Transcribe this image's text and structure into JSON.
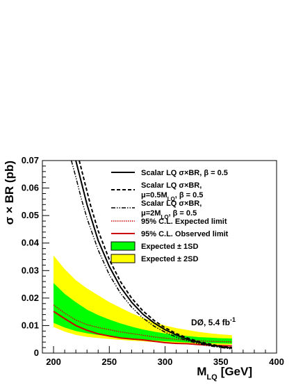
{
  "chart_data": {
    "type": "line",
    "xlabel_main": "M",
    "xlabel_sub": "LQ",
    "xlabel_unit": "[GeV]",
    "ylabel": "σ × BR (pb)",
    "xlim": [
      190,
      400
    ],
    "ylim": [
      0,
      0.07
    ],
    "x_ticks": [
      200,
      250,
      300,
      350,
      400
    ],
    "y_ticks": [
      0,
      0.01,
      0.02,
      0.03,
      0.04,
      0.05,
      0.06,
      0.07
    ],
    "y_tick_labels": [
      "0",
      "0.01",
      "0.02",
      "0.03",
      "0.04",
      "0.05",
      "0.06",
      "0.07"
    ],
    "annotation": {
      "main": "DØ, 5.4 fb",
      "sup": "-1"
    },
    "colors": {
      "band_2sd": "#ffff00",
      "band_1sd": "#00ff00",
      "observed": "#cc0000",
      "expected": "#cc0000",
      "theory": "#000000"
    },
    "x": [
      200,
      210,
      220,
      230,
      240,
      250,
      260,
      270,
      280,
      290,
      300,
      310,
      320,
      330,
      340,
      350,
      360
    ],
    "series": [
      {
        "key": "nominal",
        "name": "Scalar LQ σ×BR, β = 0.5",
        "style": "solid",
        "x": [
          220,
          225,
          230,
          240,
          250,
          260,
          270,
          280,
          290,
          300,
          310,
          320,
          330,
          340,
          350,
          360
        ],
        "values": [
          0.07,
          0.062,
          0.054,
          0.041,
          0.0315,
          0.024,
          0.0185,
          0.0142,
          0.011,
          0.0085,
          0.0066,
          0.005,
          0.0039,
          0.003,
          0.0023,
          0.0018
        ]
      },
      {
        "key": "half_mu",
        "name": "Scalar LQ σ×BR, μ=0.5M_LQ, β = 0.5",
        "style": "dashed",
        "x": [
          223,
          228,
          233,
          240,
          250,
          260,
          270,
          280,
          290,
          300,
          310,
          320,
          330,
          340,
          350,
          360
        ],
        "values": [
          0.07,
          0.062,
          0.054,
          0.0445,
          0.034,
          0.026,
          0.02,
          0.0154,
          0.0119,
          0.0092,
          0.0071,
          0.0055,
          0.0042,
          0.0033,
          0.0025,
          0.002
        ]
      },
      {
        "key": "double_mu",
        "name": "Scalar LQ σ×BR, μ=2M_LQ, β = 0.5",
        "style": "dashdot",
        "x": [
          216,
          220,
          225,
          230,
          240,
          250,
          260,
          270,
          280,
          290,
          300,
          310,
          320,
          330,
          340,
          350,
          360
        ],
        "values": [
          0.07,
          0.064,
          0.056,
          0.049,
          0.0375,
          0.0285,
          0.0218,
          0.0167,
          0.0128,
          0.0098,
          0.0076,
          0.0058,
          0.0045,
          0.0034,
          0.0026,
          0.002,
          0.0015
        ]
      },
      {
        "key": "expected",
        "name": "95% C.L. Expected limit",
        "style": "dotted",
        "values": [
          0.0175,
          0.0145,
          0.012,
          0.0103,
          0.0093,
          0.0085,
          0.0077,
          0.0071,
          0.0065,
          0.0059,
          0.0054,
          0.005,
          0.0047,
          0.0045,
          0.0043,
          0.0042,
          0.0041
        ]
      },
      {
        "key": "observed",
        "name": "95% C.L. Observed limit",
        "style": "solid",
        "values": [
          0.0152,
          0.0125,
          0.01,
          0.0083,
          0.007,
          0.0062,
          0.0055,
          0.0051,
          0.0048,
          0.0043,
          0.0038,
          0.0035,
          0.0034,
          0.0031,
          0.0028,
          0.0027,
          0.0026
        ]
      }
    ],
    "bands": [
      {
        "key": "sd1",
        "name": "Expected ± 1SD",
        "low": [
          0.011,
          0.0093,
          0.008,
          0.0072,
          0.0066,
          0.0061,
          0.0056,
          0.0052,
          0.0049,
          0.0046,
          0.0043,
          0.0041,
          0.0039,
          0.0037,
          0.0036,
          0.0035,
          0.0034
        ],
        "high": [
          0.0255,
          0.0215,
          0.0185,
          0.0158,
          0.0138,
          0.0122,
          0.0108,
          0.0096,
          0.0086,
          0.0078,
          0.0071,
          0.0066,
          0.0062,
          0.0058,
          0.0056,
          0.0054,
          0.0053
        ]
      },
      {
        "key": "sd2",
        "name": "Expected ± 2SD",
        "low": [
          0.0095,
          0.0078,
          0.0066,
          0.0059,
          0.0055,
          0.0051,
          0.0048,
          0.0045,
          0.0043,
          0.004,
          0.0038,
          0.0036,
          0.0034,
          0.0032,
          0.0031,
          0.003,
          0.003
        ],
        "high": [
          0.0355,
          0.0305,
          0.0265,
          0.0235,
          0.021,
          0.0185,
          0.0165,
          0.0145,
          0.0128,
          0.0113,
          0.01,
          0.0091,
          0.0084,
          0.0077,
          0.0072,
          0.0068,
          0.0065
        ]
      }
    ],
    "legend": {
      "placement": "top-right",
      "entries": [
        {
          "key": "nominal",
          "kind": "line",
          "lines": [
            "Scalar LQ σ×BR, β = 0.5"
          ]
        },
        {
          "key": "half_mu",
          "kind": "line",
          "lines": [
            "Scalar LQ σ×BR,",
            "μ=0.5M_LQ, β = 0.5"
          ]
        },
        {
          "key": "double_mu",
          "kind": "line",
          "lines": [
            "Scalar LQ σ×BR,",
            "μ=2M_LQ, β = 0.5"
          ]
        },
        {
          "key": "expected",
          "kind": "line",
          "lines": [
            "95% C.L. Expected limit"
          ]
        },
        {
          "key": "observed",
          "kind": "line",
          "lines": [
            "95% C.L. Observed limit"
          ]
        },
        {
          "key": "sd1",
          "kind": "box",
          "lines": [
            "Expected ± 1SD"
          ]
        },
        {
          "key": "sd2",
          "kind": "box",
          "lines": [
            "Expected ± 2SD"
          ]
        }
      ]
    }
  }
}
